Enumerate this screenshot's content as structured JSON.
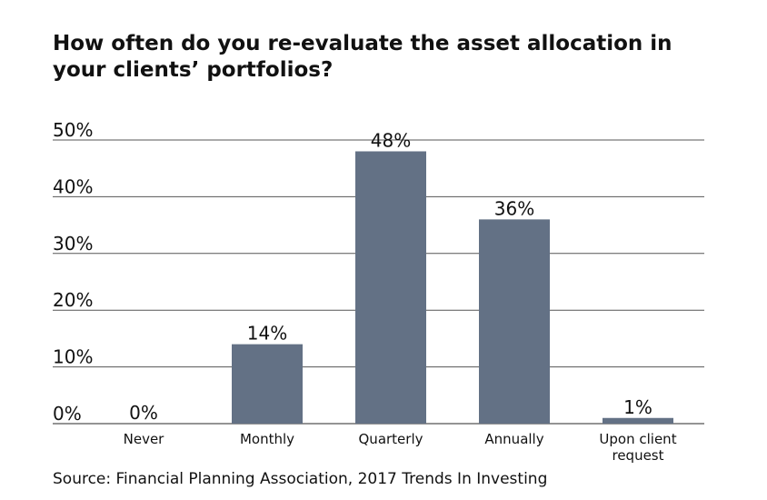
{
  "title": "How often do you re-evaluate the asset allocation in your clients’ portfolios?",
  "source": "Source: Financial Planning Association, 2017 Trends In Investing",
  "colors": {
    "bar": "#637185",
    "grid": "#555555",
    "text": "#111111"
  },
  "chart_data": {
    "type": "bar",
    "title": "How often do you re-evaluate the asset allocation in your clients’ portfolios?",
    "categories": [
      "Never",
      "Monthly",
      "Quarterly",
      "Annually",
      "Upon client request"
    ],
    "category_lines": [
      [
        "Never"
      ],
      [
        "Monthly"
      ],
      [
        "Quarterly"
      ],
      [
        "Annually"
      ],
      [
        "Upon client",
        "request"
      ]
    ],
    "values": [
      0,
      14,
      48,
      36,
      1
    ],
    "data_labels": [
      "0%",
      "14%",
      "48%",
      "36%",
      "1%"
    ],
    "ylim": [
      0,
      50
    ],
    "yticks": [
      0,
      10,
      20,
      30,
      40,
      50
    ],
    "ytick_labels": [
      "0%",
      "10%",
      "20%",
      "30%",
      "40%",
      "50%"
    ],
    "xlabel": "",
    "ylabel": "",
    "grid": true
  }
}
